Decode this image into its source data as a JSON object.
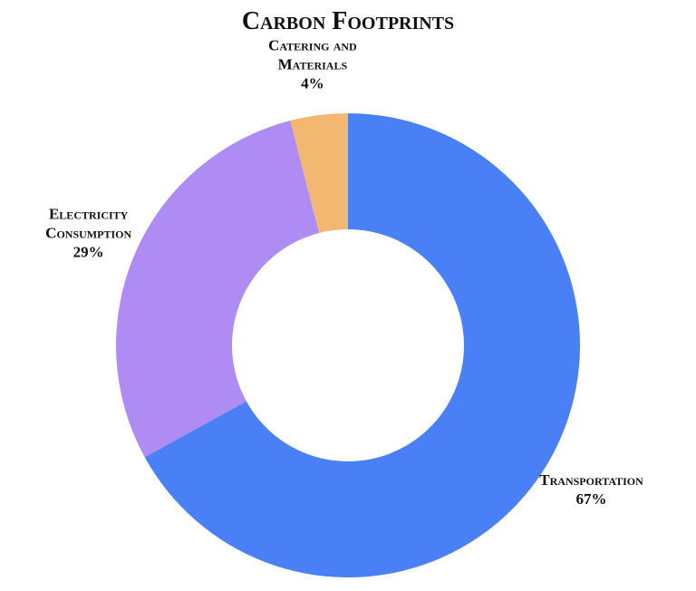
{
  "chart_data": {
    "type": "donut",
    "title": "Carbon Footprints",
    "labels": [
      "Transportation",
      "Electricity Consumption",
      "Catering and Materials"
    ],
    "values": [
      67,
      29,
      4
    ],
    "value_labels": [
      "67%",
      "29%",
      "4%"
    ],
    "colors": [
      "#4a80f5",
      "#ae8cf4",
      "#f2b872"
    ]
  }
}
